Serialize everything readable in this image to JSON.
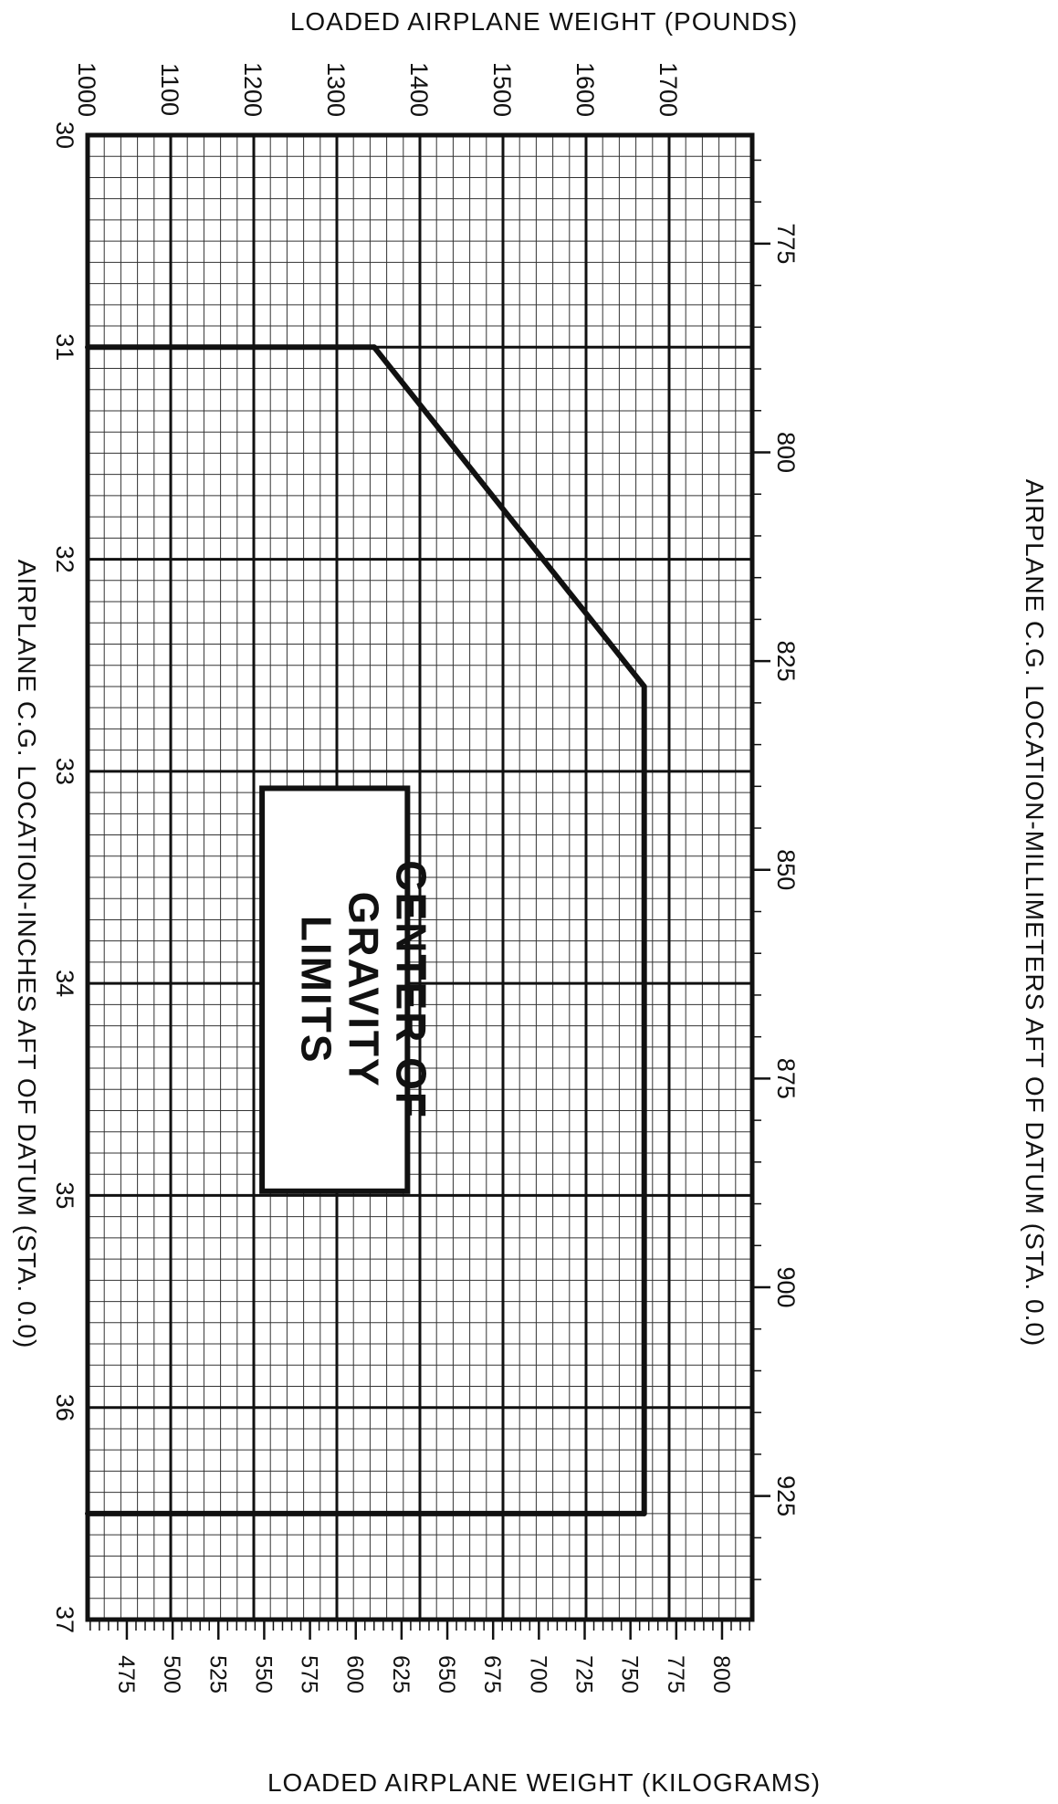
{
  "chart_data": {
    "type": "line",
    "title": "",
    "xlabel": "LOADED AIRPLANE WEIGHT (POUNDS)",
    "x2label": "LOADED AIRPLANE WEIGHT (KILOGRAMS)",
    "ylabel": "AIRPLANE C.G. LOCATION-INCHES AFT OF DATUM (STA. 0.0)",
    "y2label": "AIRPLANE C.G. LOCATION-MILLIMETERS AFT OF DATUM (STA. 0.0)",
    "xlim": [
      1000,
      1800
    ],
    "ylim": [
      30,
      37
    ],
    "orientation": "rotated: weight axis runs left-to-right, C.G. axis runs top-to-bottom",
    "x_ticks_lb": [
      "1000",
      "1100",
      "1200",
      "1300",
      "1400",
      "1500",
      "1600",
      "1700"
    ],
    "y_ticks_in": [
      "30",
      "31",
      "32",
      "33",
      "34",
      "35",
      "36",
      "37"
    ],
    "kg_ticks": [
      "475",
      "500",
      "525",
      "550",
      "575",
      "600",
      "625",
      "650",
      "675",
      "700",
      "725",
      "750",
      "775",
      "800"
    ],
    "mm_ticks": [
      "775",
      "800",
      "825",
      "850",
      "875",
      "900",
      "925"
    ],
    "grid": true,
    "annotation": [
      "CENTER OF",
      "GRAVITY",
      "LIMITS"
    ],
    "series": [
      {
        "points": [
          {
            "cg": 31.0,
            "weight": 1000
          },
          {
            "cg": 31.0,
            "weight": 1345
          },
          {
            "cg": 32.6,
            "weight": 1670
          },
          {
            "cg": 36.5,
            "weight": 1670
          },
          {
            "cg": 36.5,
            "weight": 1000
          }
        ]
      }
    ]
  }
}
